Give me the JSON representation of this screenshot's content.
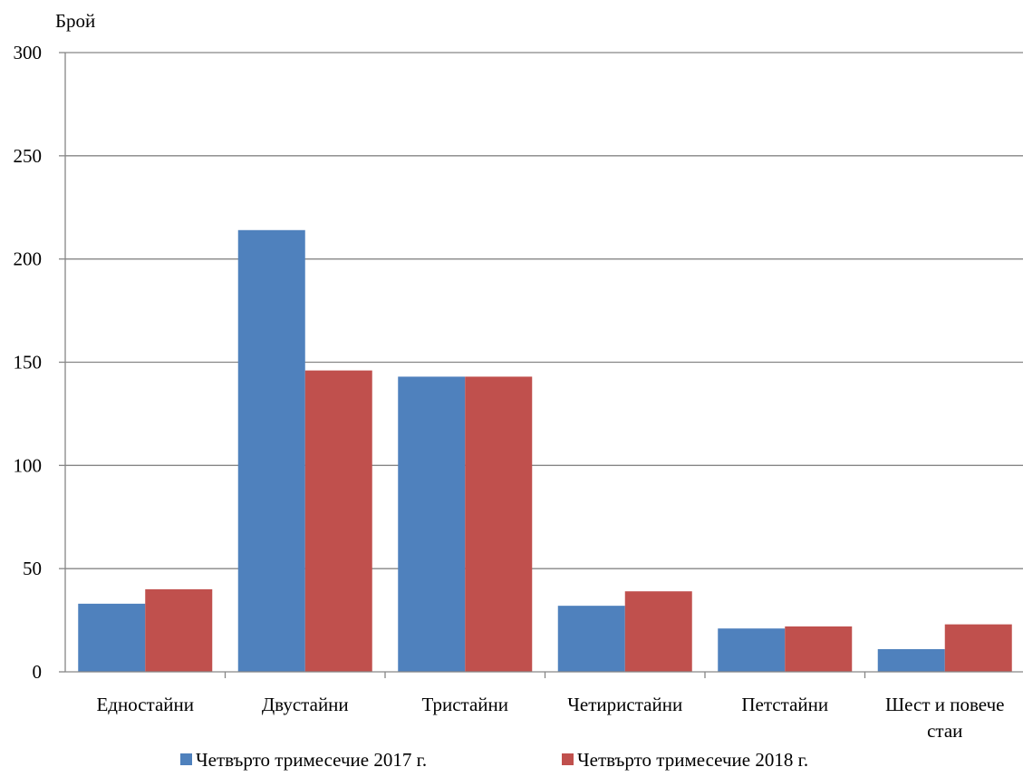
{
  "chart_data": {
    "type": "bar",
    "title": "",
    "xlabel": "",
    "ylabel": "Брой",
    "ylim": [
      0,
      300
    ],
    "yticks": [
      0,
      50,
      100,
      150,
      200,
      250,
      300
    ],
    "grid": true,
    "legend_position": "bottom",
    "categories": [
      [
        "Едностайни"
      ],
      [
        "Двустайни"
      ],
      [
        "Тристайни"
      ],
      [
        "Четиристайни"
      ],
      [
        "Петстайни"
      ],
      [
        "Шест и повече",
        "стаи"
      ]
    ],
    "series": [
      {
        "name": "Четвърто тримесечие 2017 г.",
        "color": "#4F81BD",
        "values": [
          33,
          214,
          143,
          32,
          21,
          11
        ]
      },
      {
        "name": "Четвърто тримесечие 2018 г.",
        "color": "#C0504D",
        "values": [
          40,
          146,
          143,
          39,
          22,
          23
        ]
      }
    ]
  }
}
